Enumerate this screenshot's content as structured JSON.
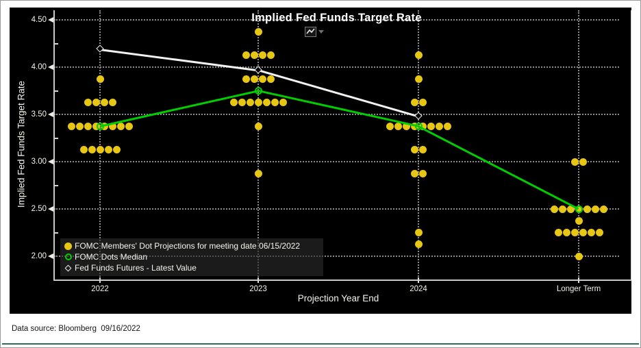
{
  "chart_data": {
    "type": "scatter",
    "title": "Implied Fed Funds Target Rate",
    "xlabel": "Projection Year End",
    "ylabel": "Implied Fed Funds Target Rate",
    "categories": [
      "2022",
      "2023",
      "2024",
      "Longer Term"
    ],
    "y_ticks": [
      {
        "label": "4.50",
        "value": 4.5
      },
      {
        "label": "4.00",
        "value": 4.0
      },
      {
        "label": "3.50",
        "value": 3.5
      },
      {
        "label": "3.00",
        "value": 3.0
      },
      {
        "label": "2.50",
        "value": 2.5
      },
      {
        "label": "2.00",
        "value": 2.0
      }
    ],
    "y_minor_ticks": [
      4.25,
      3.75,
      3.25,
      2.75,
      2.25
    ],
    "ylim": [
      1.9,
      4.57
    ],
    "grid": true,
    "legend_position": "inside-bottom-left",
    "series": [
      {
        "name": "FOMC Members' Dot Projections for meeting date 06/15/2022",
        "type": "dot-plot",
        "color": "#E7C614",
        "distributions": [
          [
            {
              "value": 3.875,
              "count": 1
            },
            {
              "value": 3.625,
              "count": 4
            },
            {
              "value": 3.375,
              "count": 8
            },
            {
              "value": 3.125,
              "count": 5
            }
          ],
          [
            {
              "value": 4.375,
              "count": 1
            },
            {
              "value": 4.125,
              "count": 4
            },
            {
              "value": 3.875,
              "count": 4
            },
            {
              "value": 3.625,
              "count": 7
            },
            {
              "value": 3.375,
              "count": 1
            },
            {
              "value": 2.875,
              "count": 1
            }
          ],
          [
            {
              "value": 4.125,
              "count": 1
            },
            {
              "value": 3.875,
              "count": 1
            },
            {
              "value": 3.625,
              "count": 2
            },
            {
              "value": 3.375,
              "count": 8
            },
            {
              "value": 3.125,
              "count": 2
            },
            {
              "value": 2.875,
              "count": 2
            },
            {
              "value": 2.25,
              "count": 1
            },
            {
              "value": 2.125,
              "count": 1
            }
          ],
          [
            {
              "value": 3.0,
              "count": 2
            },
            {
              "value": 2.5,
              "count": 7
            },
            {
              "value": 2.375,
              "count": 1
            },
            {
              "value": 2.25,
              "count": 6
            },
            {
              "value": 2.0,
              "count": 1
            }
          ]
        ]
      },
      {
        "name": "FOMC Dots Median",
        "type": "line",
        "color": "#00CE00",
        "marker": "hollow-circle",
        "values": [
          3.375,
          3.75,
          3.375,
          2.5
        ]
      },
      {
        "name": "Fed Funds Futures - Latest Value",
        "type": "line",
        "color": "#F2F2F2",
        "marker": "hollow-diamond",
        "values": [
          4.19,
          3.97,
          3.48,
          null
        ]
      }
    ]
  },
  "toolbar": {
    "chart_type_icon": "line-chart-icon",
    "dropdown_icon": "chevron-down-icon"
  },
  "footer": {
    "note": "Data source: Bloomberg  09/16/2022"
  },
  "colors": {
    "page_background": "#FFFFFF",
    "panel_background": "#000000",
    "dots": "#E7C614",
    "median_line": "#00CE00",
    "futures_line": "#F2F2F2",
    "grid": "#8C8C8C",
    "axis": "#C9C9C9",
    "text": "#F4F2EC",
    "bottom_rule": "#2F6B55"
  }
}
